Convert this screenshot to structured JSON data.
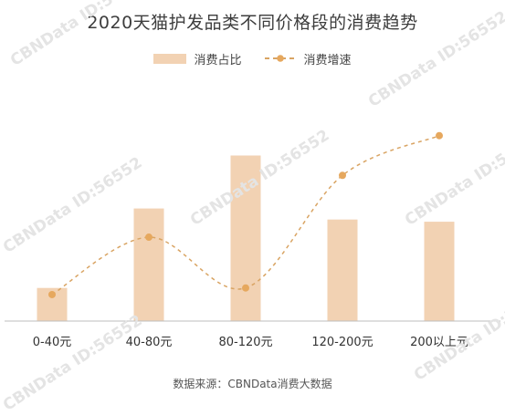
{
  "title": "2020天猫护发品类不同价格段的消费趋势",
  "source": "数据来源：CBNData消费大数据",
  "watermark": "CBNData ID:56552",
  "colors": {
    "bar": "#f2d2b3",
    "line": "#d9a463",
    "point": "#e6a85e",
    "axis": "#bdbdbd",
    "text": "#333333"
  },
  "chart_data": {
    "type": "bar",
    "title": "2020天猫护发品类不同价格段的消费趋势",
    "categories": [
      "0-40元",
      "40-80元",
      "80-120元",
      "120-200元",
      "200以上元"
    ],
    "series": [
      {
        "name": "消费占比",
        "type": "bar",
        "values": [
          15,
          51,
          75,
          46,
          45
        ]
      },
      {
        "name": "消费增速",
        "type": "line",
        "style": "dashed",
        "values": [
          12,
          38,
          15,
          66,
          84
        ]
      }
    ],
    "ylim": [
      0,
      100
    ],
    "grid": false,
    "legend": "top-center",
    "note": "No value axis is printed; values are estimated relative levels on a 0–100 scale"
  }
}
